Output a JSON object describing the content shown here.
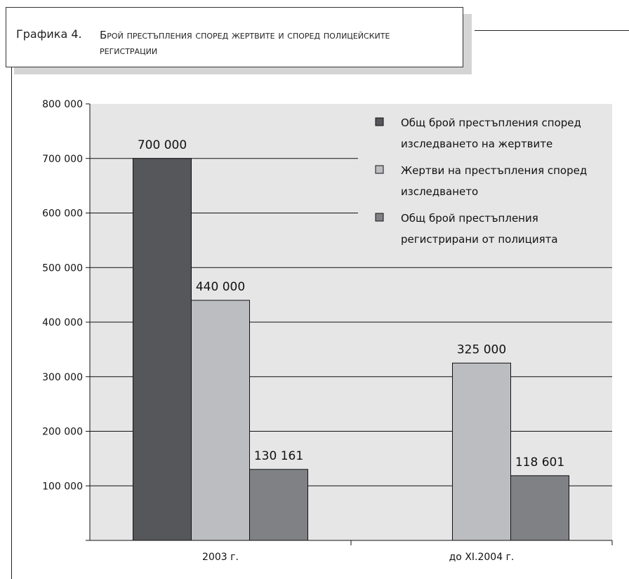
{
  "title": {
    "label": "Графика 4.",
    "text": "Брой престъпления според жертвите и според полицейските регистрации"
  },
  "colors": {
    "plot_background": "#e6e6e6",
    "series": [
      "#56575a",
      "#bcbdc0",
      "#808184"
    ]
  },
  "chart_data": {
    "type": "bar",
    "categories": [
      "2003 г.",
      "до XI.2004 г."
    ],
    "series": [
      {
        "name": "Общ брой престъпления според изследването на жертвите",
        "values": [
          700000,
          null
        ]
      },
      {
        "name": "Жертви на престъпления според изследването",
        "values": [
          440000,
          325000
        ]
      },
      {
        "name": "Общ брой престъпления регистрирани от полицията",
        "values": [
          130161,
          118601
        ]
      }
    ],
    "data_labels": [
      [
        "700 000",
        ""
      ],
      [
        "440 000",
        "325 000"
      ],
      [
        "130 161",
        "118 601"
      ]
    ],
    "legend_lines": [
      [
        "Общ брой престъпления според",
        "изследването на жертвите"
      ],
      [
        "Жертви на престъпления според",
        "изследването"
      ],
      [
        "Общ брой престъпления",
        "регистрирани от полицията"
      ]
    ],
    "ylim": [
      0,
      800000
    ],
    "yticks": [
      "800 000",
      "700 000",
      "600 000",
      "500 000",
      "400 000",
      "300 000",
      "200 000",
      "100 000"
    ],
    "grid": true,
    "legend_position": "top-right"
  }
}
